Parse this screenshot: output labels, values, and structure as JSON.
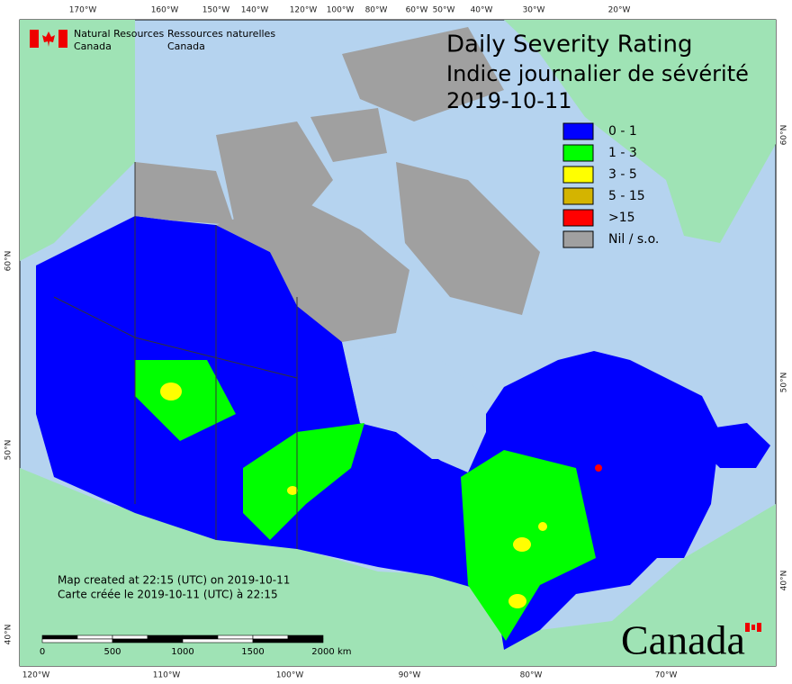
{
  "header": {
    "agency_en": [
      "Natural Resources",
      "Canada"
    ],
    "agency_fr": [
      "Ressources naturelles",
      "Canada"
    ]
  },
  "title": [
    "Daily Severity Rating",
    "Indice journalier de sévérité",
    "2019-10-11"
  ],
  "legend": [
    {
      "label": "0 - 1",
      "color": "#0000ff"
    },
    {
      "label": "1 - 3",
      "color": "#00ff00"
    },
    {
      "label": "3 - 5",
      "color": "#ffff00"
    },
    {
      "label": "5 - 15",
      "color": "#d4b400"
    },
    {
      "label": ">15",
      "color": "#ff0000"
    },
    {
      "label": "Nil / s.o.",
      "color": "#a0a0a0"
    }
  ],
  "notes": [
    "Map created at 22:15 (UTC) on 2019-10-11",
    "Carte créée le 2019-10-11 (UTC) à 22:15"
  ],
  "scale_bar": {
    "marks": [
      0,
      500,
      1000,
      1500,
      2000
    ],
    "unit": "km"
  },
  "graticule": {
    "top": [
      "170°W",
      "160°W",
      "150°W",
      "140°W",
      "120°W",
      "100°W",
      "80°W",
      "60°W",
      "50°W",
      "40°W",
      "30°W",
      "20°W"
    ],
    "bottom": [
      "120°W",
      "110°W",
      "100°W",
      "90°W",
      "80°W",
      "70°W"
    ],
    "left": [
      "60°N",
      "50°N",
      "40°N"
    ],
    "right": [
      "60°N",
      "50°N",
      "40°N"
    ]
  },
  "wordmark": "Canada"
}
